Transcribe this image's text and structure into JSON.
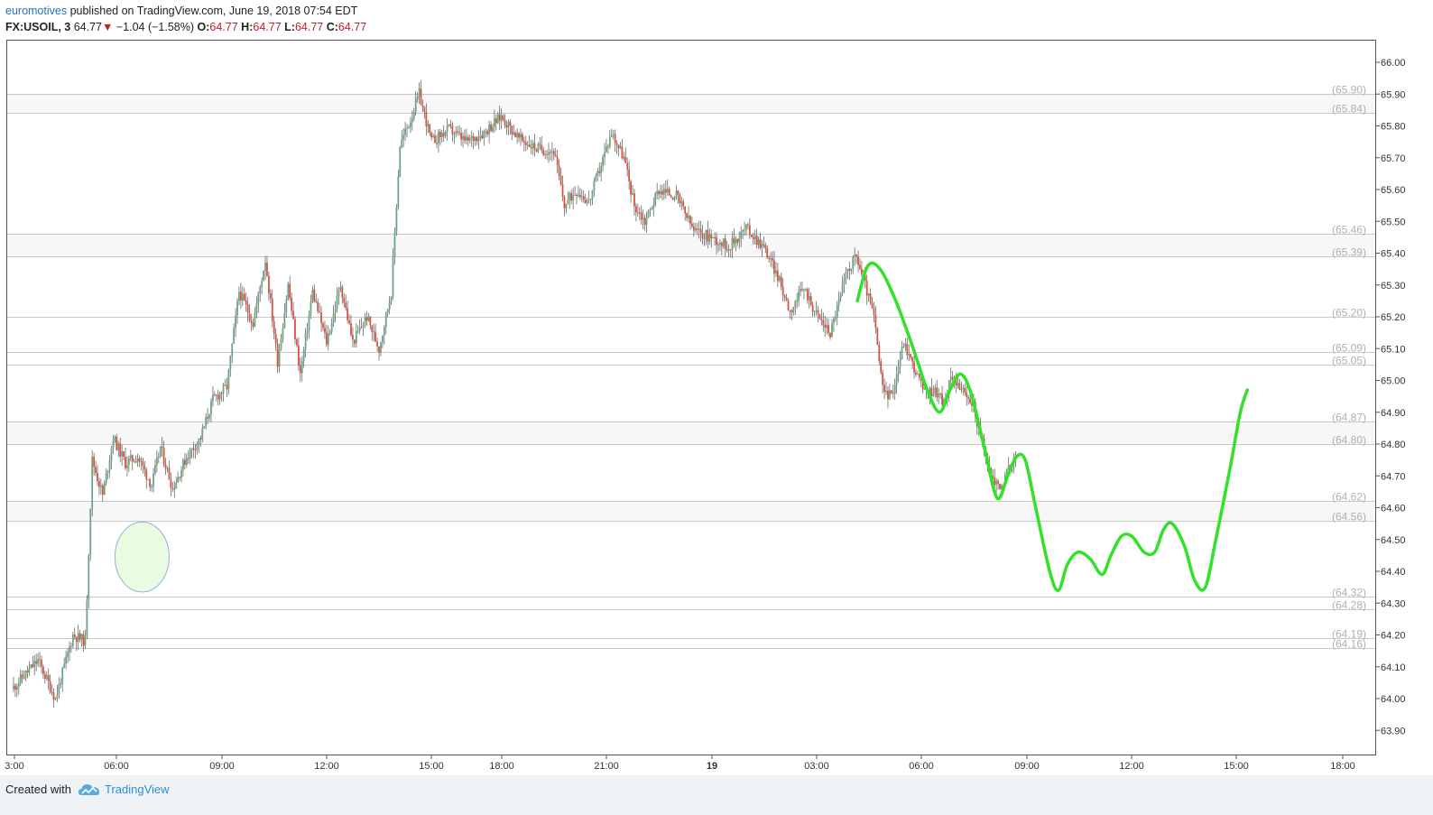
{
  "header": {
    "author": "euromotives",
    "published": "published on TradingView.com, June 19, 2018 07:54 EDT",
    "symbol": "FX:USOIL, 3",
    "last": "64.77",
    "change_arrow": "▼",
    "change": "−1.04 (−1.58%)",
    "o_label": "O:",
    "o_val": "64.77",
    "h_label": "H:",
    "h_val": "64.77",
    "l_label": "L:",
    "l_val": "64.77",
    "c_label": "C:",
    "c_val": "64.77"
  },
  "footer": {
    "created_with": "Created with",
    "brand": "TradingView"
  },
  "colors": {
    "up": "#6ba583",
    "down": "#d75442",
    "drawing": "#33e02a",
    "level_line": "#c9c9c9",
    "level_label": "#b0b0b0",
    "ellipse_fill": "#e9fbe1",
    "ellipse_stroke": "#8fb4d8"
  },
  "chart_data": {
    "type": "candlestick",
    "title": "",
    "xlabel": "",
    "ylabel": "",
    "ylim": [
      63.86,
      66.06
    ],
    "y_ticks": [
      "66.00",
      "65.90",
      "65.80",
      "65.70",
      "65.60",
      "65.50",
      "65.40",
      "65.30",
      "65.20",
      "65.10",
      "65.00",
      "64.90",
      "64.80",
      "64.70",
      "64.60",
      "64.50",
      "64.40",
      "64.30",
      "64.20",
      "64.10",
      "64.00",
      "63.90"
    ],
    "x_ticks": [
      {
        "label": "3:00",
        "bold": false
      },
      {
        "label": "06:00",
        "bold": false
      },
      {
        "label": "09:00",
        "bold": false
      },
      {
        "label": "12:00",
        "bold": false
      },
      {
        "label": "15:00",
        "bold": false
      },
      {
        "label": "18:00",
        "bold": false
      },
      {
        "label": "21:00",
        "bold": false
      },
      {
        "label": "19",
        "bold": true
      },
      {
        "label": "03:00",
        "bold": false
      },
      {
        "label": "06:00",
        "bold": false
      },
      {
        "label": "09:00",
        "bold": false
      },
      {
        "label": "12:00",
        "bold": false
      },
      {
        "label": "15:00",
        "bold": false
      },
      {
        "label": "18:00",
        "bold": false
      }
    ],
    "levels": [
      "65.90",
      "65.84",
      "65.46",
      "65.39",
      "65.20",
      "65.09",
      "65.05",
      "64.87",
      "64.80",
      "64.62",
      "64.56",
      "64.32",
      "64.28",
      "64.19",
      "64.16"
    ],
    "price_path": [
      [
        0,
        64.03
      ],
      [
        1.5,
        64.12
      ],
      [
        2.5,
        64.0
      ],
      [
        3.5,
        64.2
      ],
      [
        4.2,
        64.18
      ],
      [
        4.6,
        64.75
      ],
      [
        5.2,
        64.64
      ],
      [
        5.8,
        64.82
      ],
      [
        6.5,
        64.74
      ],
      [
        7.2,
        64.76
      ],
      [
        8.0,
        64.67
      ],
      [
        8.5,
        64.79
      ],
      [
        9.2,
        64.66
      ],
      [
        10.0,
        64.76
      ],
      [
        10.8,
        64.82
      ],
      [
        11.5,
        64.94
      ],
      [
        12.3,
        64.98
      ],
      [
        13.0,
        65.28
      ],
      [
        13.8,
        65.18
      ],
      [
        14.5,
        65.38
      ],
      [
        15.2,
        65.06
      ],
      [
        15.8,
        65.3
      ],
      [
        16.5,
        65.02
      ],
      [
        17.2,
        65.28
      ],
      [
        18.0,
        65.12
      ],
      [
        18.8,
        65.3
      ],
      [
        19.5,
        65.12
      ],
      [
        20.3,
        65.2
      ],
      [
        21.0,
        65.1
      ],
      [
        21.7,
        65.28
      ],
      [
        22.2,
        65.74
      ],
      [
        22.8,
        65.82
      ],
      [
        23.3,
        65.9
      ],
      [
        24.0,
        65.75
      ],
      [
        25.0,
        65.79
      ],
      [
        26.0,
        65.75
      ],
      [
        27.0,
        65.78
      ],
      [
        28.0,
        65.83
      ],
      [
        29.0,
        65.76
      ],
      [
        30.0,
        65.73
      ],
      [
        31.0,
        65.72
      ],
      [
        31.6,
        65.55
      ],
      [
        32.3,
        65.6
      ],
      [
        33.0,
        65.56
      ],
      [
        33.7,
        65.68
      ],
      [
        34.3,
        65.78
      ],
      [
        35.0,
        65.7
      ],
      [
        35.6,
        65.55
      ],
      [
        36.2,
        65.5
      ],
      [
        37.0,
        65.6
      ],
      [
        38.0,
        65.58
      ],
      [
        39.0,
        65.47
      ],
      [
        40.0,
        65.45
      ],
      [
        41.0,
        65.42
      ],
      [
        42.0,
        65.48
      ],
      [
        43.0,
        65.42
      ],
      [
        43.7,
        65.34
      ],
      [
        44.5,
        65.22
      ],
      [
        45.3,
        65.29
      ],
      [
        46.0,
        65.21
      ],
      [
        46.8,
        65.15
      ],
      [
        47.3,
        65.25
      ],
      [
        47.8,
        65.35
      ],
      [
        48.3,
        65.39
      ],
      [
        48.8,
        65.3
      ],
      [
        49.3,
        65.2
      ],
      [
        49.8,
        64.97
      ],
      [
        50.3,
        64.95
      ],
      [
        51.0,
        65.12
      ],
      [
        51.6,
        65.04
      ],
      [
        52.2,
        64.96
      ],
      [
        52.8,
        64.97
      ],
      [
        53.3,
        64.93
      ],
      [
        53.8,
        65.02
      ],
      [
        54.5,
        64.95
      ],
      [
        55.0,
        64.92
      ],
      [
        55.5,
        64.8
      ],
      [
        56.0,
        64.7
      ],
      [
        56.5,
        64.66
      ],
      [
        57.0,
        64.72
      ],
      [
        57.4,
        64.77
      ]
    ],
    "forecast_path": [
      [
        48.3,
        65.25
      ],
      [
        48.9,
        65.36
      ],
      [
        49.6,
        65.35
      ],
      [
        50.5,
        65.25
      ],
      [
        51.5,
        65.1
      ],
      [
        52.3,
        64.97
      ],
      [
        53.0,
        64.9
      ],
      [
        53.6,
        64.97
      ],
      [
        54.2,
        65.02
      ],
      [
        54.8,
        64.96
      ],
      [
        55.6,
        64.78
      ],
      [
        56.3,
        64.63
      ],
      [
        56.9,
        64.7
      ],
      [
        57.4,
        64.76
      ],
      [
        57.9,
        64.75
      ],
      [
        58.5,
        64.6
      ],
      [
        59.3,
        64.4
      ],
      [
        59.8,
        64.34
      ],
      [
        60.3,
        64.42
      ],
      [
        60.9,
        64.46
      ],
      [
        61.6,
        64.44
      ],
      [
        62.3,
        64.39
      ],
      [
        62.8,
        64.45
      ],
      [
        63.4,
        64.51
      ],
      [
        64.0,
        64.51
      ],
      [
        64.7,
        64.46
      ],
      [
        65.3,
        64.46
      ],
      [
        65.8,
        64.53
      ],
      [
        66.3,
        64.55
      ],
      [
        67.0,
        64.48
      ],
      [
        67.6,
        64.37
      ],
      [
        68.2,
        64.35
      ],
      [
        68.8,
        64.5
      ],
      [
        69.6,
        64.72
      ],
      [
        70.2,
        64.9
      ],
      [
        70.6,
        64.97
      ]
    ],
    "ellipse": {
      "x_center_bar": 7.4,
      "y_center": 64.445,
      "x_radius_bars": 1.55,
      "y_radius": 0.11
    }
  }
}
